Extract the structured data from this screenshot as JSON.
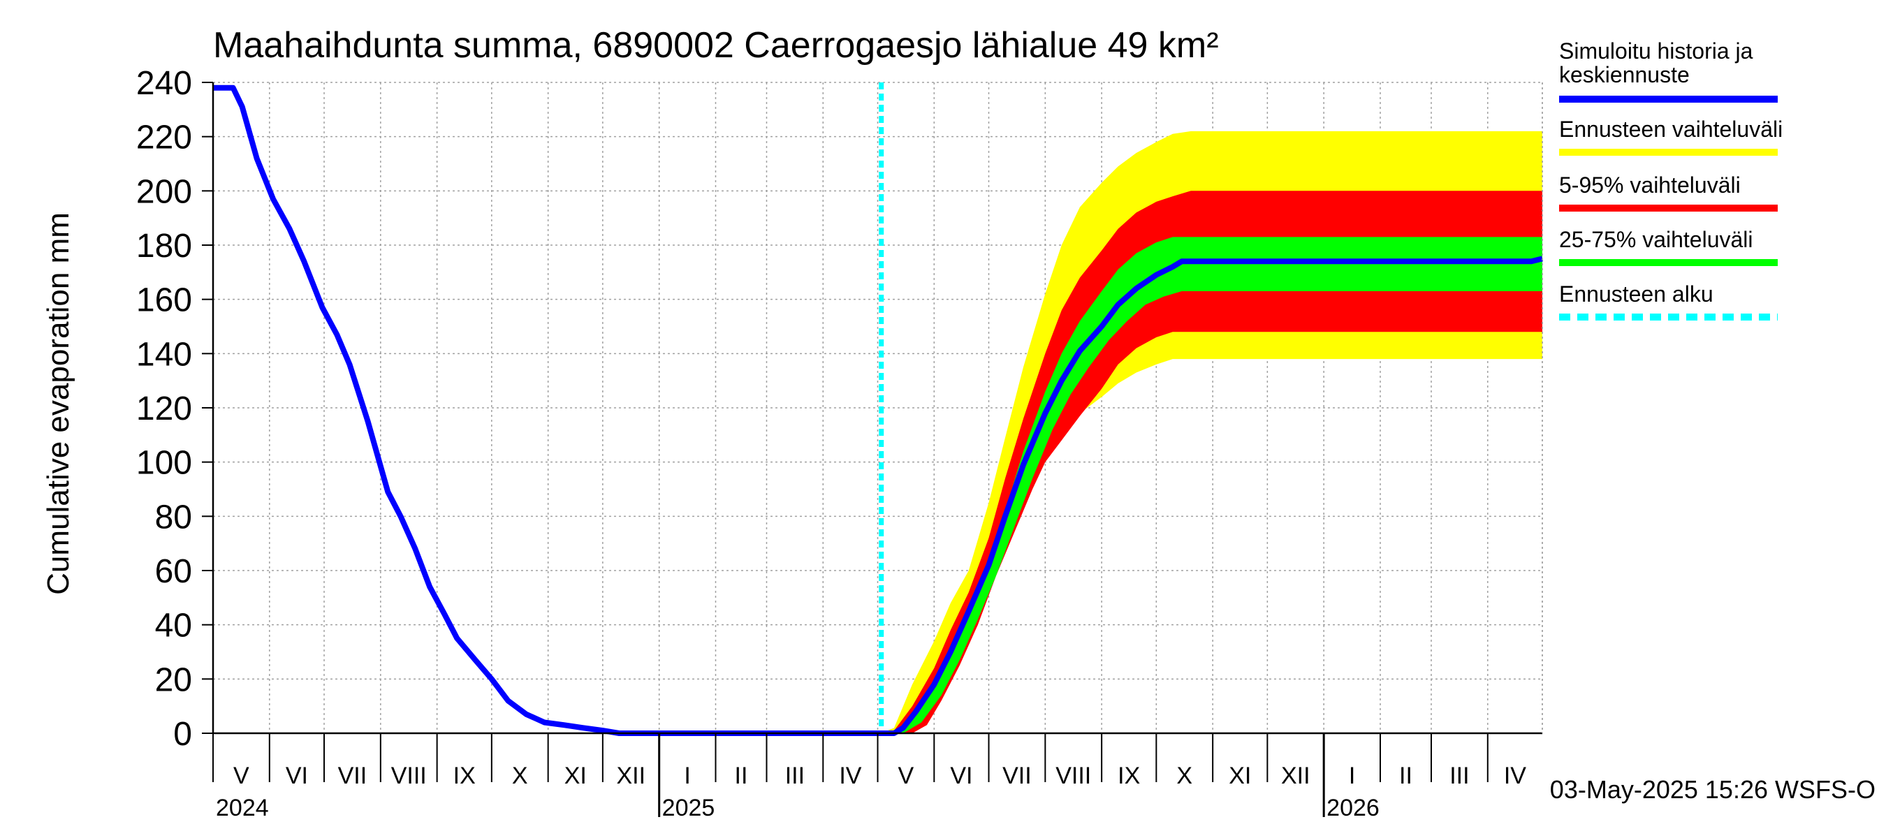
{
  "chart_data": {
    "type": "area",
    "title": "Maahaihdunta summa, 6890002 Caerrogaesjo lähialue 49 km²",
    "ylabel": "Cumulative evaporation   mm",
    "xlabel": "",
    "ylim": [
      0,
      240
    ],
    "y_ticks": [
      0,
      20,
      40,
      60,
      80,
      100,
      120,
      140,
      160,
      180,
      200,
      220,
      240
    ],
    "x_range": [
      "2024-05-01",
      "2026-05-01"
    ],
    "month_labels": [
      "V",
      "VI",
      "VII",
      "VIII",
      "IX",
      "X",
      "XI",
      "XII",
      "I",
      "II",
      "III",
      "IV",
      "V",
      "VI",
      "VII",
      "VIII",
      "IX",
      "X",
      "XI",
      "XII",
      "I",
      "II",
      "III",
      "IV"
    ],
    "year_labels": [
      {
        "label": "2024",
        "date": "2024-05-01"
      },
      {
        "label": "2025",
        "date": "2025-01-01"
      },
      {
        "label": "2026",
        "date": "2026-01-01"
      }
    ],
    "grid": true,
    "forecast_start": "2025-05-03",
    "series": [
      {
        "name": "Simuloitu historia ja keskiennuste",
        "color": "#0000ff",
        "points": [
          [
            "2024-05-01",
            238
          ],
          [
            "2024-05-12",
            238
          ],
          [
            "2024-05-17",
            231
          ],
          [
            "2024-05-25",
            212
          ],
          [
            "2024-06-03",
            197
          ],
          [
            "2024-06-12",
            186
          ],
          [
            "2024-06-20",
            174
          ],
          [
            "2024-06-30",
            157
          ],
          [
            "2024-07-08",
            147
          ],
          [
            "2024-07-15",
            136
          ],
          [
            "2024-07-25",
            115
          ],
          [
            "2024-08-05",
            89
          ],
          [
            "2024-08-12",
            80
          ],
          [
            "2024-08-20",
            68
          ],
          [
            "2024-08-28",
            54
          ],
          [
            "2024-09-05",
            44
          ],
          [
            "2024-09-12",
            35
          ],
          [
            "2024-09-22",
            27
          ],
          [
            "2024-10-01",
            20
          ],
          [
            "2024-10-10",
            12
          ],
          [
            "2024-10-20",
            7
          ],
          [
            "2024-10-30",
            4
          ],
          [
            "2024-11-10",
            3
          ],
          [
            "2024-11-20",
            2
          ],
          [
            "2024-12-01",
            1
          ],
          [
            "2024-12-10",
            0
          ],
          [
            "2025-05-03",
            0
          ],
          [
            "2025-05-10",
            0
          ],
          [
            "2025-05-15",
            2
          ],
          [
            "2025-05-22",
            8
          ],
          [
            "2025-06-01",
            18
          ],
          [
            "2025-06-10",
            30
          ],
          [
            "2025-06-20",
            45
          ],
          [
            "2025-07-01",
            62
          ],
          [
            "2025-07-10",
            80
          ],
          [
            "2025-07-20",
            99
          ],
          [
            "2025-08-01",
            118
          ],
          [
            "2025-08-10",
            130
          ],
          [
            "2025-08-20",
            141
          ],
          [
            "2025-09-01",
            150
          ],
          [
            "2025-09-10",
            158
          ],
          [
            "2025-09-20",
            164
          ],
          [
            "2025-10-01",
            169
          ],
          [
            "2025-10-10",
            172
          ],
          [
            "2025-10-15",
            174
          ],
          [
            "2026-04-25",
            174
          ],
          [
            "2026-05-01",
            175
          ]
        ]
      },
      {
        "name": "Ennusteen vaihteluväli",
        "color": "#ffff00",
        "upper": [
          [
            "2025-05-03",
            0
          ],
          [
            "2025-05-10",
            2
          ],
          [
            "2025-05-20",
            18
          ],
          [
            "2025-06-01",
            34
          ],
          [
            "2025-06-10",
            48
          ],
          [
            "2025-06-20",
            60
          ],
          [
            "2025-07-01",
            85
          ],
          [
            "2025-07-10",
            109
          ],
          [
            "2025-07-20",
            135
          ],
          [
            "2025-08-01",
            162
          ],
          [
            "2025-08-10",
            180
          ],
          [
            "2025-08-20",
            194
          ],
          [
            "2025-09-01",
            203
          ],
          [
            "2025-09-10",
            209
          ],
          [
            "2025-09-20",
            214
          ],
          [
            "2025-10-01",
            218
          ],
          [
            "2025-10-10",
            221
          ],
          [
            "2025-10-20",
            222
          ],
          [
            "2026-05-01",
            222
          ]
        ],
        "lower": [
          [
            "2025-05-03",
            0
          ],
          [
            "2025-05-15",
            0
          ],
          [
            "2025-05-25",
            3
          ],
          [
            "2025-06-01",
            12
          ],
          [
            "2025-06-10",
            25
          ],
          [
            "2025-06-20",
            40
          ],
          [
            "2025-07-01",
            58
          ],
          [
            "2025-07-10",
            74
          ],
          [
            "2025-07-20",
            88
          ],
          [
            "2025-08-01",
            100
          ],
          [
            "2025-08-10",
            110
          ],
          [
            "2025-08-20",
            118
          ],
          [
            "2025-09-01",
            124
          ],
          [
            "2025-09-10",
            129
          ],
          [
            "2025-09-20",
            133
          ],
          [
            "2025-10-01",
            136
          ],
          [
            "2025-10-10",
            138
          ],
          [
            "2026-05-01",
            138
          ]
        ]
      },
      {
        "name": "5-95% vaihteluväli",
        "color": "#ff0000",
        "upper": [
          [
            "2025-05-03",
            0
          ],
          [
            "2025-05-10",
            1
          ],
          [
            "2025-05-20",
            10
          ],
          [
            "2025-06-01",
            24
          ],
          [
            "2025-06-10",
            38
          ],
          [
            "2025-06-20",
            52
          ],
          [
            "2025-07-01",
            72
          ],
          [
            "2025-07-10",
            94
          ],
          [
            "2025-07-20",
            116
          ],
          [
            "2025-08-01",
            140
          ],
          [
            "2025-08-10",
            156
          ],
          [
            "2025-08-20",
            168
          ],
          [
            "2025-09-01",
            178
          ],
          [
            "2025-09-10",
            186
          ],
          [
            "2025-09-20",
            192
          ],
          [
            "2025-10-01",
            196
          ],
          [
            "2025-10-10",
            198
          ],
          [
            "2025-10-20",
            200
          ],
          [
            "2026-05-01",
            200
          ]
        ],
        "lower": [
          [
            "2025-05-03",
            0
          ],
          [
            "2025-05-20",
            0
          ],
          [
            "2025-05-28",
            3
          ],
          [
            "2025-06-05",
            12
          ],
          [
            "2025-06-15",
            25
          ],
          [
            "2025-06-25",
            40
          ],
          [
            "2025-07-05",
            58
          ],
          [
            "2025-07-15",
            74
          ],
          [
            "2025-07-25",
            90
          ],
          [
            "2025-08-01",
            100
          ],
          [
            "2025-08-10",
            108
          ],
          [
            "2025-08-20",
            117
          ],
          [
            "2025-09-01",
            127
          ],
          [
            "2025-09-10",
            136
          ],
          [
            "2025-09-20",
            142
          ],
          [
            "2025-10-01",
            146
          ],
          [
            "2025-10-10",
            148
          ],
          [
            "2026-05-01",
            148
          ]
        ]
      },
      {
        "name": "25-75% vaihteluväli",
        "color": "#00ff00",
        "upper": [
          [
            "2025-05-03",
            0
          ],
          [
            "2025-05-12",
            1
          ],
          [
            "2025-05-20",
            5
          ],
          [
            "2025-06-01",
            18
          ],
          [
            "2025-06-10",
            30
          ],
          [
            "2025-06-20",
            44
          ],
          [
            "2025-07-01",
            62
          ],
          [
            "2025-07-10",
            82
          ],
          [
            "2025-07-20",
            104
          ],
          [
            "2025-08-01",
            126
          ],
          [
            "2025-08-10",
            140
          ],
          [
            "2025-08-20",
            152
          ],
          [
            "2025-09-01",
            163
          ],
          [
            "2025-09-10",
            171
          ],
          [
            "2025-09-20",
            177
          ],
          [
            "2025-10-01",
            181
          ],
          [
            "2025-10-10",
            183
          ],
          [
            "2026-05-01",
            183
          ]
        ],
        "lower": [
          [
            "2025-05-03",
            0
          ],
          [
            "2025-05-15",
            0
          ],
          [
            "2025-05-25",
            4
          ],
          [
            "2025-06-05",
            14
          ],
          [
            "2025-06-15",
            27
          ],
          [
            "2025-06-25",
            42
          ],
          [
            "2025-07-05",
            58
          ],
          [
            "2025-07-15",
            76
          ],
          [
            "2025-07-25",
            94
          ],
          [
            "2025-08-05",
            112
          ],
          [
            "2025-08-15",
            125
          ],
          [
            "2025-08-25",
            135
          ],
          [
            "2025-09-05",
            145
          ],
          [
            "2025-09-15",
            152
          ],
          [
            "2025-09-25",
            158
          ],
          [
            "2025-10-05",
            161
          ],
          [
            "2025-10-15",
            163
          ],
          [
            "2026-05-01",
            163
          ]
        ]
      },
      {
        "name": "Ennusteen alku",
        "color": "#00ffff"
      }
    ],
    "legend_position": "right",
    "legend": [
      {
        "label": "Simuloitu historia ja\nkeskiennuste",
        "color": "#0000ff",
        "style": "solid"
      },
      {
        "label": "Ennusteen vaihteluväli",
        "color": "#ffff00",
        "style": "solid"
      },
      {
        "label": "5-95% vaihteluväli",
        "color": "#ff0000",
        "style": "solid"
      },
      {
        "label": "25-75% vaihteluväli",
        "color": "#00ff00",
        "style": "solid"
      },
      {
        "label": "Ennusteen alku",
        "color": "#00ffff",
        "style": "dashed"
      }
    ],
    "footer": "03-May-2025 15:26 WSFS-O"
  }
}
